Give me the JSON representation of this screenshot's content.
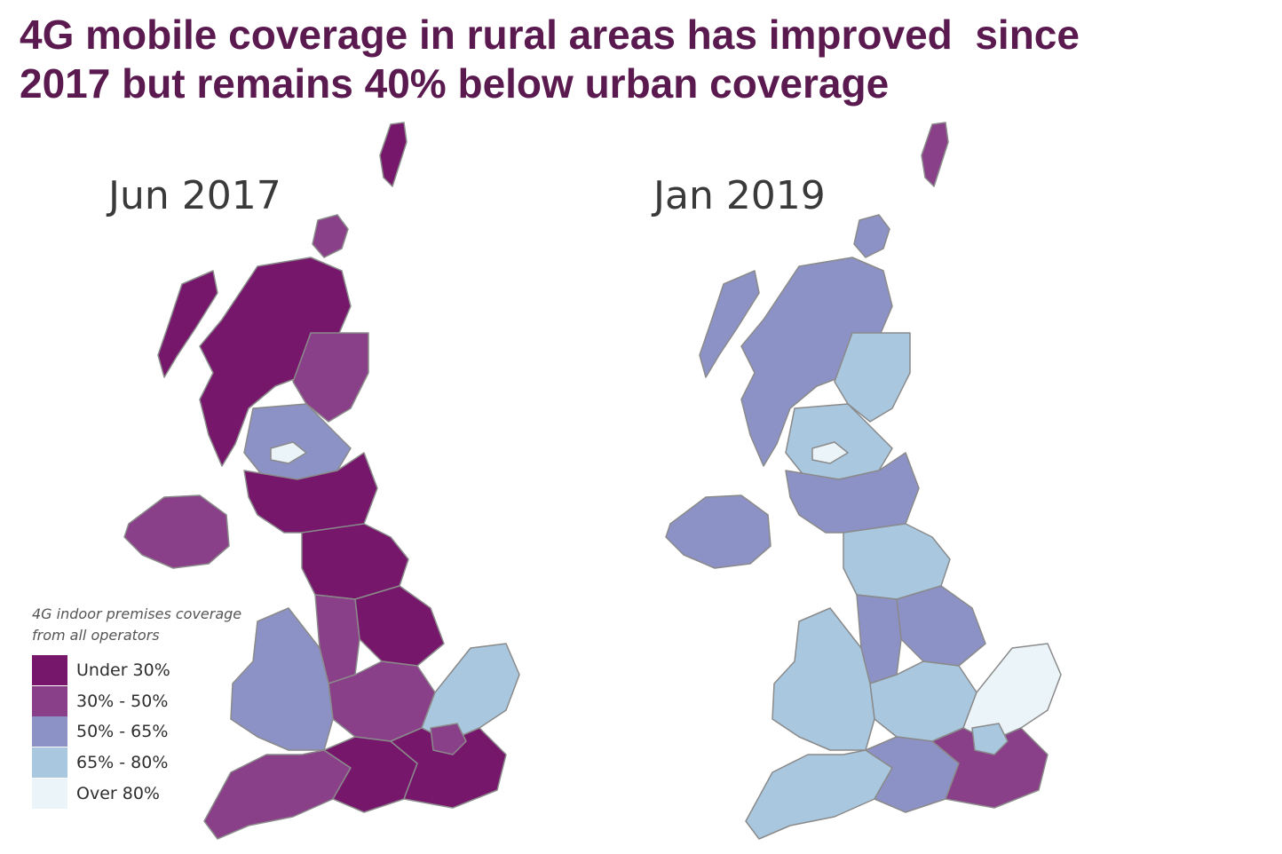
{
  "title": {
    "line1": "4G mobile coverage in rural areas has improved  since",
    "line2": "2017 but remains 40% below urban coverage"
  },
  "panels": [
    {
      "label": "Jun 2017",
      "region_fills": [
        "#76176c",
        "#8a3f89",
        "#76176c",
        "#76176c",
        "#8a3f89",
        "#8c92c6",
        "#76176c",
        "#8a3f89",
        "#76176c",
        "#76176c",
        "#8a3f89",
        "#8a3f89",
        "#a9c8e0",
        "#8c92c6",
        "#8a3f89",
        "#76176c",
        "#76176c",
        "#8a3f89",
        "#ebf4f9"
      ]
    },
    {
      "label": "Jan 2019",
      "region_fills": [
        "#8a3f89",
        "#8c92c6",
        "#8c92c6",
        "#8c92c6",
        "#a9c8e0",
        "#a9c8e0",
        "#8c92c6",
        "#8c92c6",
        "#a9c8e0",
        "#8c92c6",
        "#8c92c6",
        "#a9c8e0",
        "#ebf4f9",
        "#a9c8e0",
        "#a9c8e0",
        "#8c92c6",
        "#8a3f89",
        "#a9c8e0",
        "#ebf4f9"
      ]
    }
  ],
  "legend": {
    "title_line1": "4G indoor premises coverage",
    "title_line2": "from all operators",
    "items": [
      {
        "label": "Under 30%",
        "color": "#76176c"
      },
      {
        "label": "30% - 50%",
        "color": "#8a3f89"
      },
      {
        "label": "50% - 65%",
        "color": "#8c92c6"
      },
      {
        "label": "65% - 80%",
        "color": "#a9c8e0"
      },
      {
        "label": "Over 80%",
        "color": "#ebf4f9"
      }
    ]
  },
  "colors": {
    "title": "#5a1a4f",
    "outline": "#8a8a8a",
    "region_border": "#d9d2e3"
  }
}
